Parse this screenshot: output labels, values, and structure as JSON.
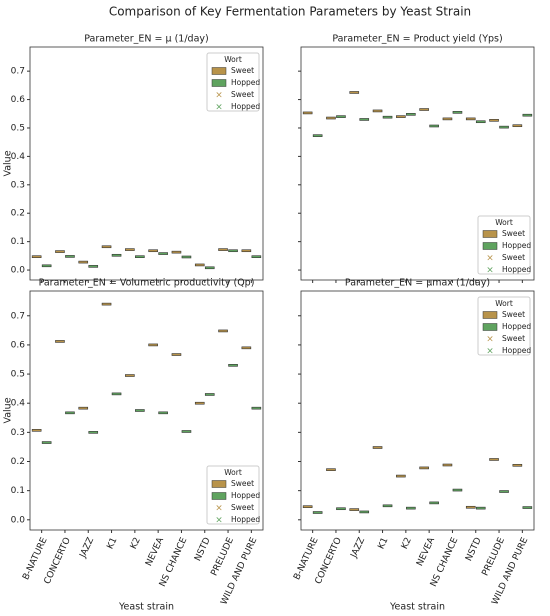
{
  "title": "Comparison of Key Fermentation Parameters by Yeast Strain",
  "xlabel": "Yeast strain",
  "ylabel": "Value",
  "legend_title": "Wort",
  "categories": [
    "B-NATURE",
    "CONCERTO",
    "JAZZ",
    "K1",
    "K2",
    "NEVEA",
    "NS CHANCE",
    "NSTD",
    "PRELUDE",
    "WILD AND PURE"
  ],
  "ylim": [
    -0.035,
    0.785
  ],
  "yticks": [
    {
      "value": 0,
      "label": "0.0"
    },
    0.1,
    0.2,
    0.3,
    0.4,
    0.5,
    0.6,
    0.7
  ],
  "chart_data": [
    {
      "type": "box",
      "title": "Parameter_EN = μ (1/day)",
      "legend_loc": "upper right",
      "series": [
        {
          "name": "Sweet",
          "color": "#b8934a",
          "values": [
            0.047,
            0.065,
            0.028,
            0.082,
            0.072,
            0.068,
            0.063,
            0.018,
            0.072,
            0.068
          ]
        },
        {
          "name": "Hopped",
          "color": "#5fa35f",
          "values": [
            0.015,
            0.048,
            0.013,
            0.052,
            0.047,
            0.058,
            0.046,
            0.008,
            0.068,
            0.047
          ]
        }
      ]
    },
    {
      "type": "box",
      "title": "Parameter_EN = Product yield (Yps)",
      "legend_loc": "lower right",
      "series": [
        {
          "name": "Sweet",
          "color": "#b8934a",
          "values": [
            0.553,
            0.535,
            0.625,
            0.56,
            0.54,
            0.565,
            0.532,
            0.532,
            0.527,
            0.508
          ]
        },
        {
          "name": "Hopped",
          "color": "#5fa35f",
          "values": [
            0.473,
            0.54,
            0.53,
            0.538,
            0.548,
            0.507,
            0.555,
            0.522,
            0.503,
            0.545
          ]
        }
      ]
    },
    {
      "type": "box",
      "title": "Parameter_EN = Volumetric productivity (Qp)",
      "legend_loc": "lower right",
      "series": [
        {
          "name": "Sweet",
          "color": "#b8934a",
          "values": [
            0.307,
            0.612,
            0.383,
            0.74,
            0.495,
            0.6,
            0.567,
            0.4,
            0.648,
            0.59
          ]
        },
        {
          "name": "Hopped",
          "color": "#5fa35f",
          "values": [
            0.265,
            0.367,
            0.3,
            0.432,
            0.375,
            0.367,
            0.303,
            0.43,
            0.53,
            0.383
          ]
        }
      ]
    },
    {
      "type": "box",
      "title": "Parameter_EN = μmax (1/day)",
      "legend_loc": "upper right",
      "series": [
        {
          "name": "Sweet",
          "color": "#b8934a",
          "values": [
            0.045,
            0.172,
            0.035,
            0.248,
            0.15,
            0.178,
            0.188,
            0.043,
            0.207,
            0.187
          ]
        },
        {
          "name": "Hopped",
          "color": "#5fa35f",
          "values": [
            0.025,
            0.038,
            0.027,
            0.048,
            0.04,
            0.058,
            0.102,
            0.04,
            0.097,
            0.042
          ]
        }
      ]
    }
  ]
}
